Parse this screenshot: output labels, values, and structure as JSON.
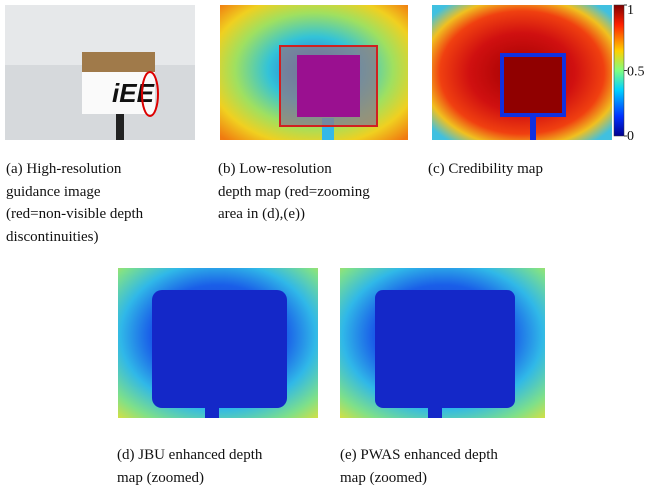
{
  "subfigures": [
    {
      "lines": [
        "(a)  High-resolution",
        "guidance image",
        "(red=non-visible depth",
        "discontinuities)"
      ]
    },
    {
      "lines": [
        "(b)  Low-resolution",
        "depth map (red=zooming",
        "area in (d),(e))"
      ]
    },
    {
      "lines": [
        "(c)  Credibility map"
      ]
    },
    {
      "lines": [
        "(d)  JBU enhanced depth",
        "map (zoomed)"
      ]
    },
    {
      "lines": [
        "(e)  PWAS enhanced depth",
        "map (zoomed)"
      ]
    }
  ],
  "logo_text": "iEE",
  "colorbar": {
    "lim": [
      0,
      1
    ],
    "ticks": [
      1,
      0.5,
      0
    ]
  }
}
